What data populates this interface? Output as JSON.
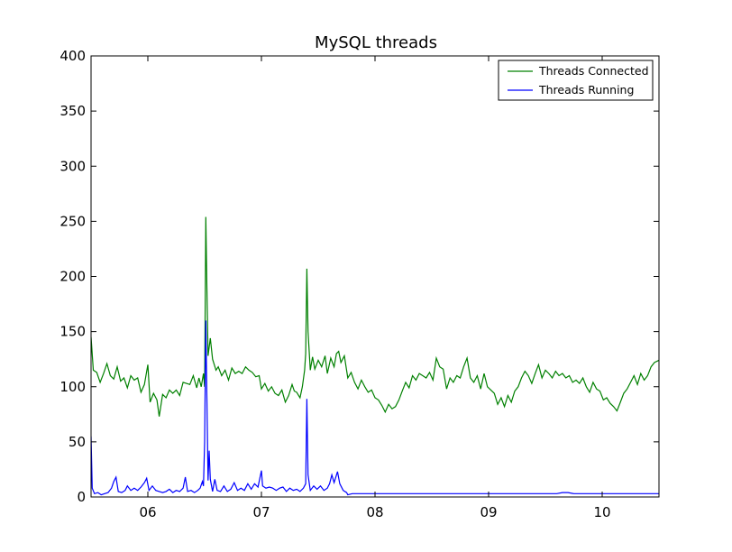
{
  "chart_data": {
    "type": "line",
    "title": "MySQL threads",
    "xlabel": "",
    "ylabel": "",
    "xlim": [
      5.5,
      10.5
    ],
    "ylim": [
      0,
      400
    ],
    "x_ticks": [
      6,
      7,
      8,
      9,
      10
    ],
    "x_tick_labels": [
      "06",
      "07",
      "08",
      "09",
      "10"
    ],
    "y_ticks": [
      0,
      50,
      100,
      150,
      200,
      250,
      300,
      350,
      400
    ],
    "y_tick_labels": [
      "0",
      "50",
      "100",
      "150",
      "200",
      "250",
      "300",
      "350",
      "400"
    ],
    "grid": false,
    "legend_position": "top-right",
    "series": [
      {
        "name": "Threads Connected",
        "color": "#008000",
        "points": [
          [
            5.5,
            145
          ],
          [
            5.52,
            115
          ],
          [
            5.55,
            113
          ],
          [
            5.58,
            104
          ],
          [
            5.61,
            112
          ],
          [
            5.64,
            121
          ],
          [
            5.67,
            110
          ],
          [
            5.7,
            107
          ],
          [
            5.73,
            118
          ],
          [
            5.76,
            105
          ],
          [
            5.79,
            108
          ],
          [
            5.82,
            99
          ],
          [
            5.85,
            110
          ],
          [
            5.88,
            106
          ],
          [
            5.91,
            108
          ],
          [
            5.94,
            95
          ],
          [
            5.97,
            102
          ],
          [
            6.0,
            120
          ],
          [
            6.02,
            86
          ],
          [
            6.05,
            94
          ],
          [
            6.08,
            88
          ],
          [
            6.1,
            73
          ],
          [
            6.13,
            93
          ],
          [
            6.16,
            90
          ],
          [
            6.19,
            97
          ],
          [
            6.22,
            94
          ],
          [
            6.25,
            97
          ],
          [
            6.28,
            92
          ],
          [
            6.31,
            104
          ],
          [
            6.34,
            103
          ],
          [
            6.37,
            102
          ],
          [
            6.4,
            110
          ],
          [
            6.43,
            99
          ],
          [
            6.45,
            108
          ],
          [
            6.47,
            100
          ],
          [
            6.49,
            112
          ],
          [
            6.5,
            100
          ],
          [
            6.51,
            254
          ],
          [
            6.52,
            190
          ],
          [
            6.53,
            128
          ],
          [
            6.55,
            144
          ],
          [
            6.57,
            125
          ],
          [
            6.6,
            115
          ],
          [
            6.62,
            118
          ],
          [
            6.65,
            110
          ],
          [
            6.68,
            115
          ],
          [
            6.71,
            106
          ],
          [
            6.74,
            117
          ],
          [
            6.77,
            112
          ],
          [
            6.8,
            114
          ],
          [
            6.83,
            112
          ],
          [
            6.86,
            118
          ],
          [
            6.89,
            115
          ],
          [
            6.92,
            113
          ],
          [
            6.95,
            109
          ],
          [
            6.98,
            110
          ],
          [
            7.0,
            98
          ],
          [
            7.03,
            103
          ],
          [
            7.06,
            96
          ],
          [
            7.09,
            100
          ],
          [
            7.12,
            94
          ],
          [
            7.15,
            92
          ],
          [
            7.18,
            97
          ],
          [
            7.21,
            86
          ],
          [
            7.24,
            92
          ],
          [
            7.27,
            102
          ],
          [
            7.29,
            96
          ],
          [
            7.31,
            95
          ],
          [
            7.34,
            90
          ],
          [
            7.36,
            100
          ],
          [
            7.38,
            115
          ],
          [
            7.39,
            130
          ],
          [
            7.4,
            207
          ],
          [
            7.41,
            150
          ],
          [
            7.43,
            115
          ],
          [
            7.45,
            127
          ],
          [
            7.47,
            116
          ],
          [
            7.5,
            124
          ],
          [
            7.53,
            118
          ],
          [
            7.56,
            128
          ],
          [
            7.58,
            112
          ],
          [
            7.61,
            126
          ],
          [
            7.64,
            118
          ],
          [
            7.66,
            130
          ],
          [
            7.68,
            132
          ],
          [
            7.7,
            122
          ],
          [
            7.73,
            128
          ],
          [
            7.76,
            108
          ],
          [
            7.79,
            113
          ],
          [
            7.82,
            104
          ],
          [
            7.85,
            98
          ],
          [
            7.88,
            106
          ],
          [
            7.91,
            100
          ],
          [
            7.94,
            95
          ],
          [
            7.97,
            97
          ],
          [
            8.0,
            90
          ],
          [
            8.03,
            88
          ],
          [
            8.06,
            83
          ],
          [
            8.09,
            77
          ],
          [
            8.12,
            84
          ],
          [
            8.15,
            80
          ],
          [
            8.18,
            82
          ],
          [
            8.21,
            88
          ],
          [
            8.24,
            96
          ],
          [
            8.27,
            104
          ],
          [
            8.3,
            99
          ],
          [
            8.33,
            110
          ],
          [
            8.36,
            106
          ],
          [
            8.39,
            112
          ],
          [
            8.42,
            110
          ],
          [
            8.45,
            108
          ],
          [
            8.48,
            113
          ],
          [
            8.51,
            106
          ],
          [
            8.54,
            126
          ],
          [
            8.57,
            118
          ],
          [
            8.6,
            116
          ],
          [
            8.63,
            98
          ],
          [
            8.66,
            108
          ],
          [
            8.69,
            104
          ],
          [
            8.72,
            110
          ],
          [
            8.75,
            108
          ],
          [
            8.78,
            118
          ],
          [
            8.81,
            126
          ],
          [
            8.84,
            108
          ],
          [
            8.87,
            104
          ],
          [
            8.9,
            110
          ],
          [
            8.93,
            98
          ],
          [
            8.96,
            112
          ],
          [
            8.99,
            100
          ],
          [
            9.02,
            97
          ],
          [
            9.05,
            94
          ],
          [
            9.08,
            84
          ],
          [
            9.11,
            90
          ],
          [
            9.14,
            82
          ],
          [
            9.17,
            92
          ],
          [
            9.2,
            86
          ],
          [
            9.23,
            96
          ],
          [
            9.26,
            100
          ],
          [
            9.29,
            108
          ],
          [
            9.32,
            114
          ],
          [
            9.35,
            110
          ],
          [
            9.38,
            103
          ],
          [
            9.41,
            112
          ],
          [
            9.44,
            120
          ],
          [
            9.47,
            108
          ],
          [
            9.5,
            115
          ],
          [
            9.53,
            112
          ],
          [
            9.56,
            108
          ],
          [
            9.59,
            114
          ],
          [
            9.62,
            110
          ],
          [
            9.65,
            112
          ],
          [
            9.68,
            108
          ],
          [
            9.71,
            110
          ],
          [
            9.74,
            104
          ],
          [
            9.77,
            106
          ],
          [
            9.8,
            103
          ],
          [
            9.83,
            108
          ],
          [
            9.86,
            100
          ],
          [
            9.89,
            95
          ],
          [
            9.92,
            104
          ],
          [
            9.95,
            98
          ],
          [
            9.98,
            96
          ],
          [
            10.01,
            88
          ],
          [
            10.04,
            90
          ],
          [
            10.07,
            85
          ],
          [
            10.1,
            82
          ],
          [
            10.13,
            78
          ],
          [
            10.16,
            86
          ],
          [
            10.19,
            94
          ],
          [
            10.22,
            98
          ],
          [
            10.25,
            104
          ],
          [
            10.28,
            110
          ],
          [
            10.31,
            102
          ],
          [
            10.34,
            112
          ],
          [
            10.37,
            106
          ],
          [
            10.4,
            110
          ],
          [
            10.43,
            118
          ],
          [
            10.46,
            122
          ],
          [
            10.5,
            124
          ]
        ]
      },
      {
        "name": "Threads Running",
        "color": "#0000ff",
        "points": [
          [
            5.5,
            55
          ],
          [
            5.51,
            8
          ],
          [
            5.53,
            3
          ],
          [
            5.56,
            4
          ],
          [
            5.59,
            2
          ],
          [
            5.62,
            3
          ],
          [
            5.65,
            4
          ],
          [
            5.68,
            8
          ],
          [
            5.7,
            14
          ],
          [
            5.72,
            18
          ],
          [
            5.74,
            5
          ],
          [
            5.77,
            4
          ],
          [
            5.8,
            6
          ],
          [
            5.82,
            10
          ],
          [
            5.85,
            6
          ],
          [
            5.88,
            8
          ],
          [
            5.91,
            6
          ],
          [
            5.94,
            9
          ],
          [
            5.97,
            13
          ],
          [
            5.99,
            17
          ],
          [
            6.01,
            6
          ],
          [
            6.04,
            10
          ],
          [
            6.07,
            6
          ],
          [
            6.1,
            5
          ],
          [
            6.13,
            4
          ],
          [
            6.16,
            5
          ],
          [
            6.19,
            7
          ],
          [
            6.22,
            4
          ],
          [
            6.25,
            6
          ],
          [
            6.28,
            5
          ],
          [
            6.31,
            8
          ],
          [
            6.33,
            18
          ],
          [
            6.35,
            5
          ],
          [
            6.38,
            6
          ],
          [
            6.41,
            4
          ],
          [
            6.44,
            6
          ],
          [
            6.46,
            8
          ],
          [
            6.48,
            14
          ],
          [
            6.49,
            10
          ],
          [
            6.5,
            50
          ],
          [
            6.51,
            160
          ],
          [
            6.52,
            90
          ],
          [
            6.53,
            15
          ],
          [
            6.54,
            42
          ],
          [
            6.55,
            16
          ],
          [
            6.57,
            5
          ],
          [
            6.59,
            16
          ],
          [
            6.61,
            6
          ],
          [
            6.64,
            5
          ],
          [
            6.67,
            10
          ],
          [
            6.7,
            5
          ],
          [
            6.73,
            7
          ],
          [
            6.76,
            13
          ],
          [
            6.79,
            6
          ],
          [
            6.82,
            8
          ],
          [
            6.85,
            6
          ],
          [
            6.88,
            12
          ],
          [
            6.91,
            7
          ],
          [
            6.94,
            12
          ],
          [
            6.97,
            9
          ],
          [
            7.0,
            24
          ],
          [
            7.01,
            10
          ],
          [
            7.04,
            8
          ],
          [
            7.07,
            9
          ],
          [
            7.1,
            8
          ],
          [
            7.13,
            6
          ],
          [
            7.16,
            8
          ],
          [
            7.19,
            9
          ],
          [
            7.22,
            5
          ],
          [
            7.25,
            8
          ],
          [
            7.28,
            6
          ],
          [
            7.31,
            7
          ],
          [
            7.34,
            5
          ],
          [
            7.37,
            8
          ],
          [
            7.39,
            12
          ],
          [
            7.4,
            89
          ],
          [
            7.41,
            20
          ],
          [
            7.43,
            6
          ],
          [
            7.46,
            10
          ],
          [
            7.49,
            7
          ],
          [
            7.52,
            10
          ],
          [
            7.55,
            6
          ],
          [
            7.58,
            8
          ],
          [
            7.6,
            12
          ],
          [
            7.62,
            20
          ],
          [
            7.64,
            13
          ],
          [
            7.67,
            23
          ],
          [
            7.69,
            12
          ],
          [
            7.72,
            6
          ],
          [
            7.75,
            4
          ],
          [
            7.76,
            2
          ],
          [
            7.8,
            3
          ],
          [
            7.9,
            3
          ],
          [
            8.0,
            3
          ],
          [
            8.1,
            3
          ],
          [
            8.2,
            3
          ],
          [
            8.3,
            3
          ],
          [
            8.4,
            3
          ],
          [
            8.5,
            3
          ],
          [
            8.6,
            3
          ],
          [
            8.7,
            3
          ],
          [
            8.8,
            3
          ],
          [
            8.9,
            3
          ],
          [
            9.0,
            3
          ],
          [
            9.1,
            3
          ],
          [
            9.2,
            3
          ],
          [
            9.3,
            3
          ],
          [
            9.4,
            3
          ],
          [
            9.5,
            3
          ],
          [
            9.6,
            3
          ],
          [
            9.65,
            4
          ],
          [
            9.7,
            4
          ],
          [
            9.75,
            3
          ],
          [
            9.8,
            3
          ],
          [
            9.9,
            3
          ],
          [
            10.0,
            3
          ],
          [
            10.1,
            3
          ],
          [
            10.2,
            3
          ],
          [
            10.3,
            3
          ],
          [
            10.4,
            3
          ],
          [
            10.5,
            3
          ]
        ]
      }
    ]
  }
}
